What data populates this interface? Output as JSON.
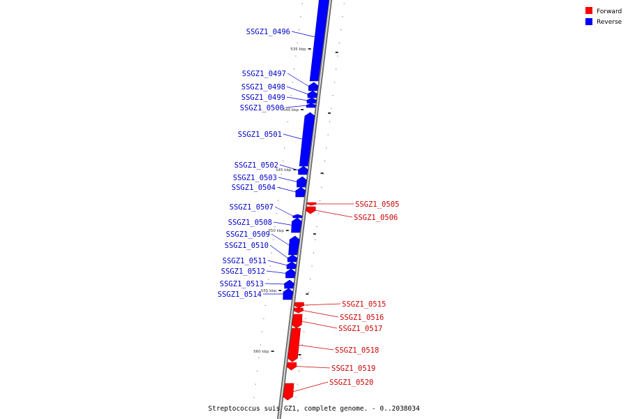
{
  "caption": "Streptococcus suis GZ1, complete genome. - 0..2038034",
  "legend": [
    {
      "label": "Forward",
      "color": "#ff0000"
    },
    {
      "label": "Reverse",
      "color": "#0000ff"
    }
  ],
  "colors": {
    "forward": "#ff0000",
    "reverse": "#0000ff",
    "forward_label": "#cc0000",
    "reverse_label": "#0000cc",
    "backbone": "#888888"
  },
  "ruler_ticks": [
    {
      "label": "535 kbp",
      "kbp": 535
    },
    {
      "label": "540 kbp",
      "kbp": 540
    },
    {
      "label": "545 kbp",
      "kbp": 545
    },
    {
      "label": "550 kbp",
      "kbp": 550
    },
    {
      "label": "555 kbp",
      "kbp": 555
    },
    {
      "label": "560 kbp",
      "kbp": 560
    }
  ],
  "genes": [
    {
      "id": "SSGZ1_0496",
      "strand": "reverse"
    },
    {
      "id": "SSGZ1_0497",
      "strand": "reverse"
    },
    {
      "id": "SSGZ1_0498",
      "strand": "reverse"
    },
    {
      "id": "SSGZ1_0499",
      "strand": "reverse"
    },
    {
      "id": "SSGZ1_0500",
      "strand": "reverse"
    },
    {
      "id": "SSGZ1_0501",
      "strand": "reverse"
    },
    {
      "id": "SSGZ1_0502",
      "strand": "reverse"
    },
    {
      "id": "SSGZ1_0503",
      "strand": "reverse"
    },
    {
      "id": "SSGZ1_0504",
      "strand": "reverse"
    },
    {
      "id": "SSGZ1_0505",
      "strand": "forward"
    },
    {
      "id": "SSGZ1_0506",
      "strand": "forward"
    },
    {
      "id": "SSGZ1_0507",
      "strand": "reverse"
    },
    {
      "id": "SSGZ1_0508",
      "strand": "reverse"
    },
    {
      "id": "SSGZ1_0509",
      "strand": "reverse"
    },
    {
      "id": "SSGZ1_0510",
      "strand": "reverse"
    },
    {
      "id": "SSGZ1_0511",
      "strand": "reverse"
    },
    {
      "id": "SSGZ1_0512",
      "strand": "reverse"
    },
    {
      "id": "SSGZ1_0513",
      "strand": "reverse"
    },
    {
      "id": "SSGZ1_0514",
      "strand": "reverse"
    },
    {
      "id": "SSGZ1_0515",
      "strand": "forward"
    },
    {
      "id": "SSGZ1_0516",
      "strand": "forward"
    },
    {
      "id": "SSGZ1_0517",
      "strand": "forward"
    },
    {
      "id": "SSGZ1_0518",
      "strand": "forward"
    },
    {
      "id": "SSGZ1_0519",
      "strand": "forward"
    },
    {
      "id": "SSGZ1_0520",
      "strand": "forward"
    }
  ]
}
